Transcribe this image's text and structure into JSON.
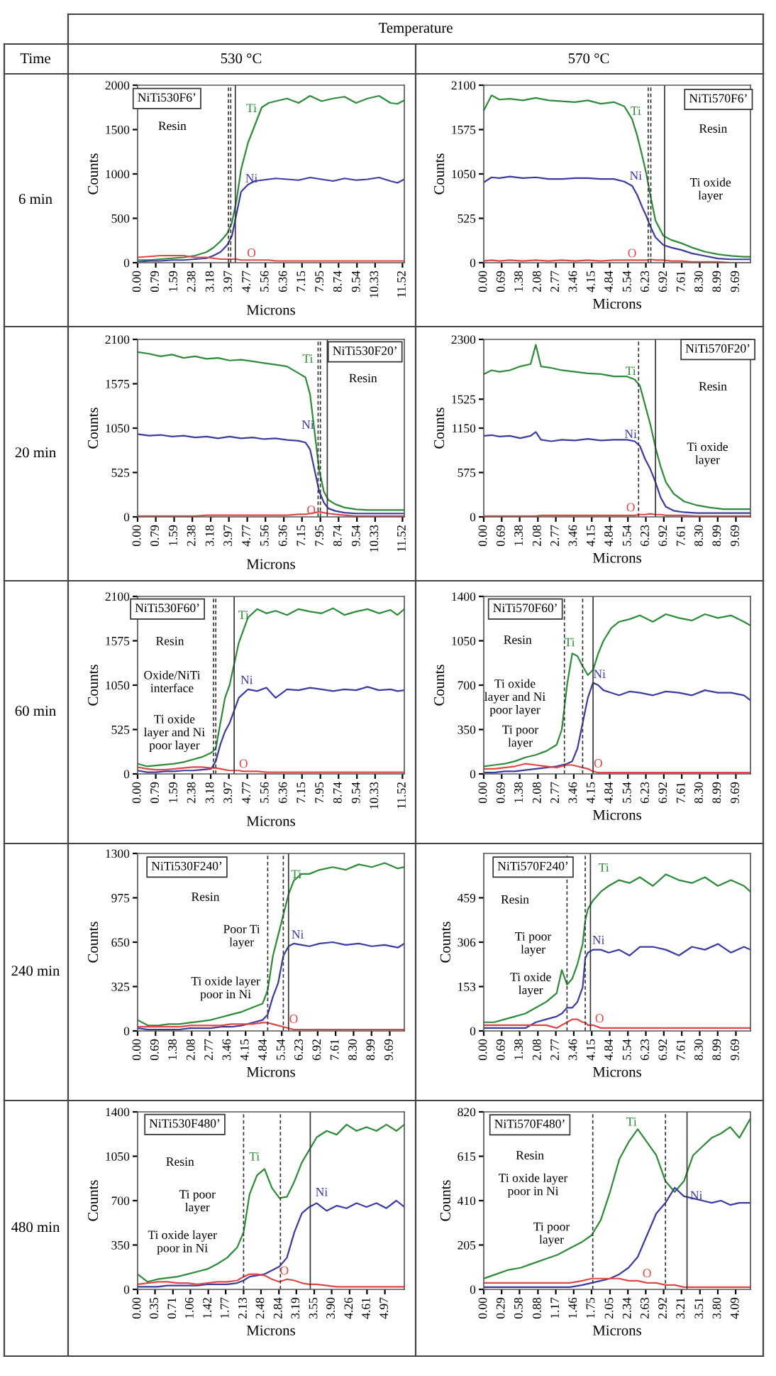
{
  "chart_data": [
    {
      "type": "other",
      "annotations": [
        "Temperature",
        "Time",
        "530 °C",
        "570 °C",
        "6 min",
        "20 min",
        "60 min",
        "240 min",
        "480 min"
      ]
    },
    {
      "type": "line",
      "xlabel": "Microns",
      "ylabel": "Counts",
      "xlim": [
        0,
        11.6
      ],
      "ylim": [
        0,
        2000
      ],
      "yticks": [
        0,
        500,
        1000,
        1500,
        2000
      ],
      "xticks": [
        {
          "value": 0,
          "label": "0.00"
        },
        0.79,
        1.59,
        2.38,
        3.18,
        3.97,
        4.77,
        5.56,
        6.36,
        7.15,
        7.95,
        8.74,
        9.54,
        10.33,
        11.52
      ],
      "x": [
        0,
        0.5,
        1,
        1.5,
        2,
        2.5,
        3,
        3.3,
        3.6,
        3.9,
        4.1,
        4.3,
        4.5,
        4.8,
        5.1,
        5.4,
        5.7,
        6,
        6.5,
        7,
        7.5,
        8,
        8.5,
        9,
        9.5,
        10,
        10.5,
        11,
        11.3,
        11.6
      ],
      "series": [
        {
          "name": "Ti",
          "color": "#2e8b3a",
          "values": [
            30,
            30,
            40,
            50,
            60,
            80,
            120,
            170,
            240,
            330,
            450,
            700,
            1050,
            1350,
            1550,
            1750,
            1800,
            1820,
            1850,
            1800,
            1880,
            1820,
            1850,
            1870,
            1800,
            1850,
            1880,
            1800,
            1790,
            1830
          ]
        },
        {
          "name": "Ni",
          "color": "#3c3ca0",
          "values": [
            10,
            20,
            20,
            30,
            30,
            40,
            50,
            80,
            120,
            200,
            300,
            550,
            800,
            880,
            920,
            930,
            940,
            950,
            940,
            930,
            960,
            940,
            920,
            950,
            930,
            940,
            960,
            920,
            900,
            940
          ]
        },
        {
          "name": "O",
          "color": "#e04848",
          "values": [
            60,
            70,
            80,
            80,
            80,
            60,
            60,
            50,
            40,
            40,
            40,
            40,
            30,
            30,
            30,
            30,
            30,
            20,
            20,
            20,
            20,
            20,
            20,
            20,
            20,
            20,
            20,
            20,
            20,
            20
          ]
        }
      ],
      "ref_lines": [
        {
          "axis": "x",
          "value": 3.95,
          "line_style": "dashed"
        },
        {
          "axis": "x",
          "value": 4.05,
          "line_style": "dashed"
        },
        {
          "axis": "x",
          "value": 4.25,
          "line_style": "solid"
        }
      ],
      "annotations": [
        "NiTi530F6’",
        "Resin"
      ]
    },
    {
      "type": "line",
      "xlabel": "Microns",
      "ylabel": "Counts",
      "xlim": [
        0,
        10.25
      ],
      "ylim": [
        0,
        2100
      ],
      "yticks": [
        0,
        525,
        1050,
        1575,
        2100
      ],
      "xticks": [
        {
          "value": 0,
          "label": "0.00"
        },
        0.69,
        1.38,
        2.08,
        2.77,
        3.46,
        4.15,
        4.84,
        5.54,
        6.23,
        6.92,
        7.61,
        {
          "value": 8.3,
          "label": "8.30"
        },
        8.99,
        9.69
      ],
      "x": [
        0,
        0.3,
        0.6,
        1,
        1.5,
        2,
        2.5,
        3,
        3.5,
        4,
        4.5,
        5,
        5.4,
        5.7,
        5.9,
        6.1,
        6.25,
        6.4,
        6.6,
        6.9,
        7.2,
        7.6,
        8,
        8.5,
        9,
        9.5,
        10,
        10.25
      ],
      "series": [
        {
          "name": "Ti",
          "color": "#2e8b3a",
          "values": [
            1800,
            1980,
            1930,
            1940,
            1920,
            1950,
            1920,
            1910,
            1900,
            1920,
            1880,
            1900,
            1850,
            1700,
            1500,
            1250,
            1050,
            800,
            500,
            320,
            270,
            230,
            180,
            130,
            100,
            80,
            70,
            70
          ]
        },
        {
          "name": "Ni",
          "color": "#3c3ca0",
          "values": [
            950,
            1010,
            1000,
            1020,
            1000,
            1010,
            990,
            990,
            1000,
            1000,
            990,
            990,
            960,
            910,
            800,
            650,
            550,
            430,
            300,
            210,
            180,
            150,
            110,
            80,
            50,
            40,
            40,
            40
          ]
        },
        {
          "name": "O",
          "color": "#e04848",
          "values": [
            20,
            30,
            20,
            30,
            20,
            30,
            20,
            30,
            20,
            30,
            20,
            30,
            30,
            30,
            30,
            30,
            30,
            40,
            30,
            30,
            20,
            20,
            10,
            10,
            10,
            0,
            0,
            0
          ]
        }
      ],
      "ref_lines": [
        {
          "axis": "x",
          "value": 6.32,
          "line_style": "dashed"
        },
        {
          "axis": "x",
          "value": 6.42,
          "line_style": "dashed"
        },
        {
          "axis": "x",
          "value": 6.95,
          "line_style": "solid"
        }
      ],
      "annotations": [
        "NiTi570F6’",
        "Resin",
        "Ti oxide\nlayer"
      ]
    },
    {
      "type": "line",
      "xlabel": "Microns",
      "ylabel": "Counts",
      "xlim": [
        0,
        11.6
      ],
      "ylim": [
        0,
        2100
      ],
      "yticks": [
        0,
        525,
        1050,
        1575,
        2100
      ],
      "xticks": [
        {
          "value": 0,
          "label": "0.00"
        },
        0.79,
        1.59,
        2.38,
        3.18,
        3.97,
        4.77,
        5.56,
        6.36,
        7.15,
        7.95,
        8.74,
        9.54,
        10.33,
        11.52
      ],
      "x": [
        0,
        0.5,
        1,
        1.5,
        2,
        2.5,
        3,
        3.5,
        4,
        4.5,
        5,
        5.5,
        6,
        6.5,
        7,
        7.3,
        7.5,
        7.7,
        7.9,
        8.1,
        8.3,
        8.6,
        9,
        9.5,
        10,
        10.5,
        11,
        11.3,
        11.6
      ],
      "series": [
        {
          "name": "Ti",
          "color": "#2e8b3a",
          "values": [
            1950,
            1930,
            1900,
            1920,
            1880,
            1900,
            1870,
            1880,
            1850,
            1860,
            1840,
            1820,
            1800,
            1780,
            1700,
            1650,
            1450,
            1000,
            550,
            300,
            200,
            150,
            110,
            90,
            80,
            80,
            80,
            80,
            80
          ]
        },
        {
          "name": "Ni",
          "color": "#3c3ca0",
          "values": [
            980,
            960,
            970,
            950,
            960,
            940,
            950,
            930,
            950,
            930,
            940,
            920,
            930,
            910,
            900,
            880,
            800,
            550,
            300,
            170,
            100,
            70,
            50,
            40,
            40,
            40,
            40,
            40,
            40
          ]
        },
        {
          "name": "O",
          "color": "#e04848",
          "values": [
            10,
            10,
            10,
            10,
            10,
            10,
            20,
            20,
            20,
            20,
            20,
            20,
            20,
            20,
            30,
            30,
            40,
            50,
            60,
            50,
            40,
            30,
            20,
            10,
            10,
            10,
            10,
            10,
            10
          ]
        }
      ],
      "ref_lines": [
        {
          "axis": "x",
          "value": 7.85,
          "line_style": "dashed"
        },
        {
          "axis": "x",
          "value": 7.95,
          "line_style": "dashed"
        },
        {
          "axis": "x",
          "value": 8.25,
          "line_style": "solid"
        }
      ],
      "annotations": [
        "NiTi530F20’",
        "Resin"
      ]
    },
    {
      "type": "line",
      "xlabel": "Microns",
      "ylabel": "Counts",
      "xlim": [
        0,
        10.25
      ],
      "ylim": [
        0,
        2300
      ],
      "yticks": [
        0,
        575,
        1150,
        1525,
        2300
      ],
      "xticks": [
        {
          "value": 0,
          "label": "0.00"
        },
        0.69,
        1.38,
        2.08,
        2.77,
        3.46,
        4.15,
        4.84,
        5.54,
        6.23,
        6.92,
        7.61,
        {
          "value": 8.3,
          "label": "8.30"
        },
        8.99,
        9.69
      ],
      "x": [
        0,
        0.3,
        0.6,
        1,
        1.4,
        1.8,
        2.0,
        2.2,
        2.6,
        3,
        3.5,
        4,
        4.5,
        5,
        5.5,
        5.8,
        6.0,
        6.2,
        6.4,
        6.6,
        6.8,
        7.0,
        7.3,
        7.7,
        8.2,
        8.7,
        9.2,
        9.7,
        10.25
      ],
      "series": [
        {
          "name": "Ti",
          "color": "#2e8b3a",
          "values": [
            1850,
            1900,
            1880,
            1900,
            1950,
            1980,
            2230,
            1950,
            1930,
            1900,
            1880,
            1860,
            1850,
            1820,
            1820,
            1780,
            1700,
            1450,
            1200,
            900,
            650,
            450,
            300,
            200,
            150,
            120,
            100,
            100,
            100
          ]
        },
        {
          "name": "Ni",
          "color": "#3c3ca0",
          "values": [
            1050,
            1060,
            1040,
            1050,
            1020,
            1050,
            1100,
            1000,
            980,
            1000,
            990,
            1010,
            990,
            1000,
            1000,
            980,
            920,
            750,
            620,
            450,
            250,
            130,
            80,
            60,
            50,
            50,
            50,
            50,
            50
          ]
        },
        {
          "name": "O",
          "color": "#e04848",
          "values": [
            10,
            10,
            10,
            10,
            10,
            10,
            10,
            20,
            20,
            20,
            20,
            20,
            20,
            20,
            20,
            20,
            30,
            30,
            40,
            30,
            30,
            20,
            20,
            20,
            10,
            10,
            10,
            10,
            10
          ]
        }
      ],
      "ref_lines": [
        {
          "axis": "x",
          "value": 5.95,
          "line_style": "dashed"
        },
        {
          "axis": "x",
          "value": 6.6,
          "line_style": "solid"
        }
      ],
      "annotations": [
        "NiTi570F20’",
        "Resin",
        "Ti oxide\nlayer"
      ]
    },
    {
      "type": "line",
      "xlabel": "Microns",
      "ylabel": "Counts",
      "xlim": [
        0,
        11.6
      ],
      "ylim": [
        0,
        2100
      ],
      "yticks": [
        0,
        525,
        1050,
        1575,
        2100
      ],
      "xticks": [
        {
          "value": 0,
          "label": "0.00"
        },
        0.79,
        1.59,
        2.38,
        3.18,
        3.97,
        4.77,
        5.56,
        6.36,
        7.15,
        7.95,
        8.74,
        9.54,
        10.33,
        11.52
      ],
      "x": [
        0,
        0.4,
        0.8,
        1.2,
        1.6,
        2,
        2.4,
        2.8,
        3.2,
        3.4,
        3.6,
        3.8,
        4.0,
        4.2,
        4.4,
        4.6,
        4.8,
        5.2,
        5.6,
        6,
        6.5,
        7,
        7.5,
        8,
        8.5,
        9,
        9.5,
        10,
        10.5,
        11,
        11.3,
        11.6
      ],
      "series": [
        {
          "name": "Ti",
          "color": "#2e8b3a",
          "values": [
            120,
            90,
            100,
            110,
            120,
            140,
            170,
            200,
            250,
            300,
            600,
            900,
            1050,
            1300,
            1550,
            1700,
            1850,
            1950,
            1900,
            1930,
            1880,
            1950,
            1920,
            1900,
            1960,
            1880,
            1920,
            1950,
            1900,
            1940,
            1880,
            1950
          ]
        },
        {
          "name": "Ni",
          "color": "#3c3ca0",
          "values": [
            40,
            20,
            20,
            30,
            30,
            40,
            40,
            50,
            60,
            150,
            350,
            500,
            600,
            750,
            900,
            950,
            1000,
            980,
            1020,
            900,
            1000,
            990,
            1020,
            1000,
            980,
            1000,
            990,
            1030,
            990,
            1000,
            980,
            990
          ]
        },
        {
          "name": "O",
          "color": "#e04848",
          "values": [
            80,
            60,
            50,
            50,
            60,
            70,
            80,
            80,
            70,
            70,
            60,
            50,
            40,
            40,
            40,
            30,
            30,
            30,
            20,
            20,
            20,
            20,
            20,
            20,
            20,
            20,
            20,
            20,
            20,
            20,
            20,
            20
          ]
        }
      ],
      "ref_lines": [
        {
          "axis": "x",
          "value": 3.3,
          "line_style": "dashed"
        },
        {
          "axis": "x",
          "value": 3.4,
          "line_style": "dashed"
        },
        {
          "axis": "x",
          "value": 4.2,
          "line_style": "solid"
        }
      ],
      "annotations": [
        "NiTi530F60’",
        "Resin",
        "Oxide/NiTi\ninterface",
        "Ti oxide\nlayer and Ni\npoor layer"
      ]
    },
    {
      "type": "line",
      "xlabel": "Microns",
      "ylabel": "Counts",
      "xlim": [
        0,
        10.25
      ],
      "ylim": [
        0,
        1400
      ],
      "yticks": [
        0,
        350,
        700,
        1050,
        1400
      ],
      "xticks": [
        {
          "value": 0,
          "label": "0.00"
        },
        0.69,
        1.38,
        2.08,
        2.77,
        3.46,
        4.15,
        4.84,
        5.54,
        6.23,
        6.92,
        7.61,
        {
          "value": 8.3,
          "label": "8.30"
        },
        8.99,
        9.69
      ],
      "x": [
        0,
        0.4,
        0.8,
        1.2,
        1.6,
        2.0,
        2.4,
        2.8,
        3.0,
        3.2,
        3.4,
        3.6,
        3.8,
        4.0,
        4.2,
        4.4,
        4.6,
        4.9,
        5.2,
        5.6,
        6,
        6.5,
        7,
        7.5,
        8,
        8.5,
        9,
        9.5,
        10,
        10.25
      ],
      "series": [
        {
          "name": "Ti",
          "color": "#2e8b3a",
          "values": [
            60,
            70,
            80,
            100,
            130,
            150,
            180,
            230,
            350,
            700,
            950,
            930,
            850,
            780,
            820,
            950,
            1050,
            1150,
            1200,
            1220,
            1250,
            1200,
            1260,
            1230,
            1210,
            1260,
            1230,
            1250,
            1200,
            1170
          ]
        },
        {
          "name": "Ni",
          "color": "#3c3ca0",
          "values": [
            10,
            10,
            20,
            20,
            30,
            40,
            50,
            60,
            70,
            80,
            100,
            200,
            400,
            600,
            720,
            700,
            660,
            640,
            620,
            650,
            640,
            620,
            650,
            640,
            620,
            660,
            640,
            640,
            620,
            580
          ]
        },
        {
          "name": "O",
          "color": "#e04848",
          "values": [
            40,
            40,
            50,
            60,
            80,
            70,
            60,
            50,
            60,
            70,
            70,
            60,
            50,
            40,
            20,
            10,
            10,
            10,
            10,
            10,
            10,
            10,
            10,
            10,
            10,
            10,
            10,
            10,
            10,
            10
          ]
        }
      ],
      "ref_lines": [
        {
          "axis": "x",
          "value": 3.1,
          "line_style": "dashed"
        },
        {
          "axis": "x",
          "value": 3.8,
          "line_style": "dashed"
        },
        {
          "axis": "x",
          "value": 4.2,
          "line_style": "solid"
        }
      ],
      "annotations": [
        "NiTi570F60’",
        "Resin",
        "Ti oxide\nlayer and Ni\npoor layer",
        "Ti poor\nlayer"
      ]
    },
    {
      "type": "line",
      "xlabel": "Microns",
      "ylabel": "Counts",
      "xlim": [
        0,
        10.25
      ],
      "ylim": [
        0,
        1300
      ],
      "yticks": [
        0,
        325,
        650,
        975,
        1300
      ],
      "xticks": [
        {
          "value": 0,
          "label": "0.00"
        },
        0.69,
        1.38,
        2.08,
        2.77,
        3.46,
        4.15,
        4.84,
        5.54,
        6.23,
        6.92,
        7.61,
        {
          "value": 8.3,
          "label": "8.30"
        },
        8.99,
        9.69
      ],
      "x": [
        0,
        0.4,
        0.8,
        1.2,
        1.6,
        2,
        2.4,
        2.8,
        3.2,
        3.6,
        4,
        4.4,
        4.8,
        5.0,
        5.2,
        5.4,
        5.6,
        5.8,
        6.0,
        6.3,
        6.6,
        7,
        7.5,
        8,
        8.5,
        9,
        9.5,
        10,
        10.25
      ],
      "series": [
        {
          "name": "Ti",
          "color": "#2e8b3a",
          "values": [
            80,
            40,
            40,
            50,
            50,
            60,
            70,
            80,
            100,
            120,
            140,
            170,
            200,
            300,
            550,
            700,
            850,
            1000,
            1100,
            1150,
            1150,
            1180,
            1200,
            1180,
            1220,
            1200,
            1230,
            1190,
            1200
          ]
        },
        {
          "name": "Ni",
          "color": "#3c3ca0",
          "values": [
            20,
            10,
            10,
            10,
            10,
            20,
            20,
            20,
            30,
            30,
            40,
            60,
            80,
            120,
            250,
            350,
            550,
            620,
            640,
            630,
            620,
            640,
            650,
            630,
            640,
            620,
            630,
            610,
            640
          ]
        },
        {
          "name": "O",
          "color": "#e04848",
          "values": [
            30,
            30,
            30,
            30,
            30,
            40,
            40,
            40,
            40,
            50,
            50,
            50,
            60,
            60,
            50,
            40,
            30,
            20,
            10,
            10,
            10,
            10,
            10,
            10,
            10,
            10,
            10,
            10,
            10
          ]
        }
      ],
      "ref_lines": [
        {
          "axis": "x",
          "value": 5.0,
          "line_style": "dashed"
        },
        {
          "axis": "x",
          "value": 5.6,
          "line_style": "dashed"
        },
        {
          "axis": "x",
          "value": 5.8,
          "line_style": "solid"
        }
      ],
      "annotations": [
        "NiTi530F240’",
        "Resin",
        "Poor Ti\nlayer",
        "Ti oxide layer\npoor in Ni"
      ]
    },
    {
      "type": "line",
      "xlabel": "Microns",
      "ylabel": "Counts",
      "xlim": [
        0,
        10.25
      ],
      "ylim": [
        0,
        612
      ],
      "yticks": [
        0,
        153,
        306,
        459
      ],
      "xticks": [
        {
          "value": 0,
          "label": "0.00"
        },
        0.69,
        1.38,
        2.08,
        2.77,
        3.46,
        4.15,
        4.84,
        5.54,
        6.23,
        6.92,
        7.61,
        {
          "value": 8.3,
          "label": "8.30"
        },
        8.99,
        9.69
      ],
      "x": [
        0,
        0.4,
        0.8,
        1.2,
        1.6,
        2,
        2.4,
        2.8,
        3.0,
        3.2,
        3.4,
        3.6,
        3.8,
        3.9,
        4.0,
        4.2,
        4.5,
        4.8,
        5.2,
        5.6,
        6,
        6.5,
        7,
        7.5,
        8,
        8.5,
        9,
        9.5,
        10,
        10.25
      ],
      "series": [
        {
          "name": "Ti",
          "color": "#2e8b3a",
          "values": [
            30,
            30,
            40,
            50,
            60,
            80,
            100,
            130,
            210,
            160,
            180,
            230,
            300,
            380,
            420,
            450,
            480,
            500,
            520,
            510,
            530,
            500,
            540,
            520,
            510,
            530,
            500,
            520,
            500,
            480
          ]
        },
        {
          "name": "Ni",
          "color": "#3c3ca0",
          "values": [
            10,
            10,
            10,
            10,
            10,
            30,
            40,
            50,
            60,
            80,
            80,
            100,
            150,
            250,
            270,
            280,
            280,
            270,
            280,
            260,
            290,
            290,
            280,
            260,
            290,
            280,
            300,
            270,
            290,
            280
          ]
        },
        {
          "name": "O",
          "color": "#e04848",
          "values": [
            20,
            20,
            20,
            20,
            20,
            20,
            20,
            10,
            20,
            30,
            40,
            40,
            30,
            30,
            20,
            20,
            10,
            10,
            10,
            10,
            10,
            10,
            10,
            10,
            10,
            10,
            10,
            10,
            10,
            10
          ]
        }
      ],
      "ref_lines": [
        {
          "axis": "x",
          "value": 3.2,
          "line_style": "dashed"
        },
        {
          "axis": "x",
          "value": 3.9,
          "line_style": "dashed"
        },
        {
          "axis": "x",
          "value": 4.1,
          "line_style": "solid"
        }
      ],
      "annotations": [
        "NiTi570F240’",
        "Resin",
        "Ti poor\nlayer",
        "Ti oxide\nlayer"
      ]
    },
    {
      "type": "line",
      "xlabel": "Microns",
      "ylabel": "Counts",
      "xlim": [
        0,
        5.36
      ],
      "ylim": [
        0,
        1400
      ],
      "yticks": [
        0,
        350,
        700,
        1050,
        1400
      ],
      "xticks": [
        {
          "value": 0,
          "label": "0.00"
        },
        0.35,
        0.71,
        1.06,
        1.42,
        1.77,
        2.13,
        2.48,
        2.84,
        3.19,
        3.55,
        {
          "value": 3.9,
          "label": "3.90"
        },
        4.26,
        4.61,
        4.97
      ],
      "x": [
        0,
        0.2,
        0.4,
        0.6,
        0.8,
        1.0,
        1.2,
        1.4,
        1.6,
        1.8,
        2.0,
        2.13,
        2.25,
        2.4,
        2.55,
        2.7,
        2.85,
        3.0,
        3.15,
        3.3,
        3.45,
        3.6,
        3.8,
        4.0,
        4.2,
        4.4,
        4.6,
        4.8,
        5.0,
        5.2,
        5.36
      ],
      "series": [
        {
          "name": "Ti",
          "color": "#2e8b3a",
          "values": [
            120,
            60,
            80,
            90,
            100,
            120,
            140,
            160,
            200,
            250,
            330,
            450,
            750,
            900,
            950,
            800,
            720,
            730,
            850,
            1000,
            1100,
            1200,
            1250,
            1220,
            1300,
            1250,
            1280,
            1250,
            1300,
            1250,
            1300
          ]
        },
        {
          "name": "Ni",
          "color": "#3c3ca0",
          "values": [
            20,
            20,
            20,
            30,
            30,
            30,
            30,
            40,
            40,
            40,
            50,
            70,
            100,
            110,
            120,
            150,
            180,
            250,
            450,
            600,
            650,
            680,
            620,
            660,
            640,
            680,
            650,
            680,
            640,
            700,
            650
          ]
        },
        {
          "name": "O",
          "color": "#e04848",
          "values": [
            40,
            50,
            60,
            60,
            50,
            50,
            40,
            50,
            60,
            60,
            70,
            100,
            120,
            120,
            110,
            80,
            60,
            80,
            70,
            50,
            40,
            40,
            30,
            20,
            20,
            20,
            20,
            20,
            20,
            20,
            20
          ]
        }
      ],
      "ref_lines": [
        {
          "axis": "x",
          "value": 2.13,
          "line_style": "dashed"
        },
        {
          "axis": "x",
          "value": 2.87,
          "line_style": "dashed"
        },
        {
          "axis": "x",
          "value": 3.47,
          "line_style": "solid"
        }
      ],
      "annotations": [
        "NiTi530F480’",
        "Resin",
        "Ti poor\nlayer",
        "Ti oxide layer\npoor in Ni"
      ]
    },
    {
      "type": "line",
      "xlabel": "Microns",
      "ylabel": "Counts",
      "xlim": [
        0,
        4.33
      ],
      "ylim": [
        0,
        820
      ],
      "yticks": [
        0,
        205,
        410,
        615,
        820
      ],
      "xticks": [
        {
          "value": 0,
          "label": "0.00"
        },
        0.29,
        0.58,
        0.88,
        1.17,
        1.46,
        1.75,
        2.05,
        2.34,
        2.63,
        2.92,
        3.21,
        3.51,
        {
          "value": 3.8,
          "label": "3.80"
        },
        4.09
      ],
      "x": [
        0,
        0.2,
        0.4,
        0.6,
        0.8,
        1.0,
        1.2,
        1.4,
        1.6,
        1.75,
        1.9,
        2.05,
        2.2,
        2.35,
        2.5,
        2.65,
        2.8,
        2.95,
        3.1,
        3.25,
        3.4,
        3.55,
        3.7,
        3.85,
        4.0,
        4.15,
        4.33
      ],
      "series": [
        {
          "name": "Ti",
          "color": "#2e8b3a",
          "values": [
            50,
            70,
            90,
            100,
            120,
            140,
            160,
            190,
            220,
            250,
            320,
            450,
            600,
            680,
            740,
            680,
            620,
            500,
            450,
            500,
            620,
            660,
            700,
            720,
            750,
            700,
            790
          ]
        },
        {
          "name": "Ni",
          "color": "#3c3ca0",
          "values": [
            10,
            10,
            10,
            10,
            10,
            10,
            10,
            10,
            20,
            30,
            40,
            50,
            70,
            100,
            150,
            250,
            350,
            400,
            470,
            430,
            420,
            410,
            400,
            410,
            390,
            400,
            400
          ]
        },
        {
          "name": "O",
          "color": "#e04848",
          "values": [
            30,
            30,
            30,
            30,
            30,
            30,
            30,
            30,
            40,
            50,
            50,
            50,
            50,
            40,
            40,
            30,
            30,
            20,
            20,
            10,
            10,
            10,
            10,
            10,
            10,
            10,
            10
          ]
        }
      ],
      "ref_lines": [
        {
          "axis": "x",
          "value": 1.77,
          "line_style": "dashed"
        },
        {
          "axis": "x",
          "value": 2.95,
          "line_style": "dashed"
        },
        {
          "axis": "x",
          "value": 3.3,
          "line_style": "solid"
        }
      ],
      "annotations": [
        "NiTi570F480’",
        "Resin",
        "Ti oxide layer\npoor in Ni",
        "Ti poor\nlayer"
      ]
    }
  ]
}
